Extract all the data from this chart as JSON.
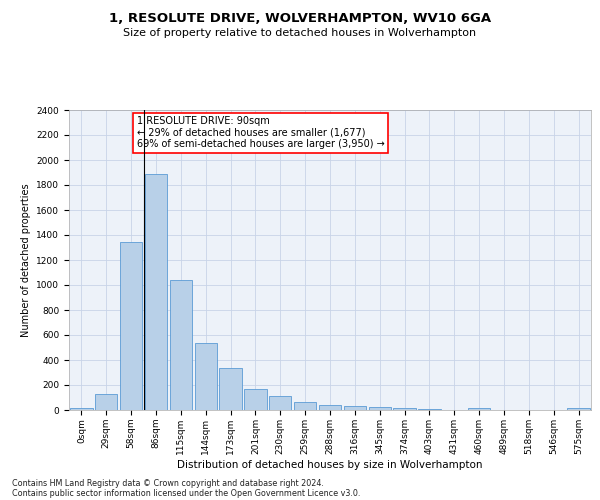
{
  "title": "1, RESOLUTE DRIVE, WOLVERHAMPTON, WV10 6GA",
  "subtitle": "Size of property relative to detached houses in Wolverhampton",
  "xlabel": "Distribution of detached houses by size in Wolverhampton",
  "ylabel": "Number of detached properties",
  "categories": [
    "0sqm",
    "29sqm",
    "58sqm",
    "86sqm",
    "115sqm",
    "144sqm",
    "173sqm",
    "201sqm",
    "230sqm",
    "259sqm",
    "288sqm",
    "316sqm",
    "345sqm",
    "374sqm",
    "403sqm",
    "431sqm",
    "460sqm",
    "489sqm",
    "518sqm",
    "546sqm",
    "575sqm"
  ],
  "values": [
    15,
    125,
    1345,
    1890,
    1040,
    540,
    335,
    165,
    110,
    65,
    40,
    32,
    28,
    20,
    12,
    0,
    20,
    0,
    0,
    0,
    15
  ],
  "bar_color": "#b8d0e8",
  "bar_edgecolor": "#5b9bd5",
  "grid_color": "#c8d4e8",
  "background_color": "#edf2f9",
  "annotation_text_line1": "1 RESOLUTE DRIVE: 90sqm",
  "annotation_text_line2": "← 29% of detached houses are smaller (1,677)",
  "annotation_text_line3": "69% of semi-detached houses are larger (3,950) →",
  "vline_x": 2.5,
  "ylim": [
    0,
    2400
  ],
  "yticks": [
    0,
    200,
    400,
    600,
    800,
    1000,
    1200,
    1400,
    1600,
    1800,
    2000,
    2200,
    2400
  ],
  "footer_line1": "Contains HM Land Registry data © Crown copyright and database right 2024.",
  "footer_line2": "Contains public sector information licensed under the Open Government Licence v3.0.",
  "title_fontsize": 9.5,
  "subtitle_fontsize": 8,
  "xlabel_fontsize": 7.5,
  "ylabel_fontsize": 7,
  "tick_fontsize": 6.5,
  "annotation_fontsize": 7,
  "footer_fontsize": 5.8
}
